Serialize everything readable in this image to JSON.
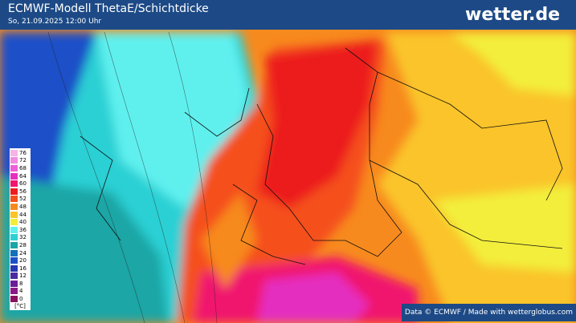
{
  "header": {
    "title": "ECMWF-Modell ThetaE/Schichtdicke",
    "subtitle": "So, 21.09.2025 12:00 Uhr",
    "logo": "wetter.de"
  },
  "legend": {
    "unit": "[°C]",
    "items": [
      {
        "label": 76,
        "color": "#f7b3e6"
      },
      {
        "label": 72,
        "color": "#f28be0"
      },
      {
        "label": 68,
        "color": "#ee5fd8"
      },
      {
        "label": 64,
        "color": "#e42fc0"
      },
      {
        "label": 60,
        "color": "#f0176e"
      },
      {
        "label": 56,
        "color": "#ec1c1c"
      },
      {
        "label": 52,
        "color": "#f5501a"
      },
      {
        "label": 48,
        "color": "#f78a1e"
      },
      {
        "label": 44,
        "color": "#fac42a"
      },
      {
        "label": 40,
        "color": "#f3ee3a"
      },
      {
        "label": 36,
        "color": "#5ff0ee"
      },
      {
        "label": 32,
        "color": "#2cd0d4"
      },
      {
        "label": 28,
        "color": "#1aa6a6"
      },
      {
        "label": 24,
        "color": "#1470b8"
      },
      {
        "label": 20,
        "color": "#1c50c8"
      },
      {
        "label": 16,
        "color": "#2838b0"
      },
      {
        "label": 12,
        "color": "#4a2aa0"
      },
      {
        "label": 8,
        "color": "#6a1e98"
      },
      {
        "label": 4,
        "color": "#8a1a88"
      },
      {
        "label": 0,
        "color": "#8a1060"
      }
    ]
  },
  "credit": "Data © ECMWF / Made with wetterglobus.com"
}
